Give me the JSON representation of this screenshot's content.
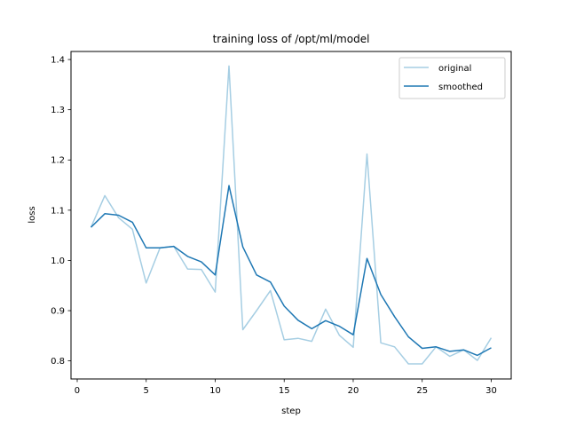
{
  "chart_data": {
    "type": "line",
    "title": "training loss of /opt/ml/model",
    "xlabel": "step",
    "ylabel": "loss",
    "xlim": [
      -0.45,
      31.45
    ],
    "ylim": [
      0.764,
      1.416
    ],
    "xticks": [
      0,
      5,
      10,
      15,
      20,
      25,
      30
    ],
    "yticks": [
      0.8,
      0.9,
      1.0,
      1.1,
      1.2,
      1.3,
      1.4
    ],
    "ytick_labels": [
      "0.8",
      "0.9",
      "1.0",
      "1.1",
      "1.2",
      "1.3",
      "1.4"
    ],
    "grid": false,
    "legend_position": "upper right",
    "x": [
      1,
      2,
      3,
      4,
      5,
      6,
      7,
      8,
      9,
      10,
      11,
      12,
      13,
      14,
      15,
      16,
      17,
      18,
      19,
      20,
      21,
      22,
      23,
      24,
      25,
      26,
      27,
      28,
      29,
      30
    ],
    "series": [
      {
        "name": "original",
        "color": "#a6cee3",
        "values": [
          1.066,
          1.129,
          1.085,
          1.062,
          0.955,
          1.025,
          1.028,
          0.983,
          0.982,
          0.937,
          1.387,
          0.862,
          0.9,
          0.94,
          0.842,
          0.845,
          0.839,
          0.903,
          0.851,
          0.827,
          1.212,
          0.836,
          0.828,
          0.794,
          0.794,
          0.828,
          0.809,
          0.822,
          0.801,
          0.846
        ]
      },
      {
        "name": "smoothed",
        "color": "#1f78b4",
        "values": [
          1.066,
          1.093,
          1.09,
          1.076,
          1.025,
          1.025,
          1.028,
          1.008,
          0.997,
          0.971,
          1.149,
          1.027,
          0.971,
          0.957,
          0.909,
          0.881,
          0.864,
          0.88,
          0.869,
          0.852,
          1.004,
          0.932,
          0.888,
          0.848,
          0.825,
          0.828,
          0.819,
          0.822,
          0.811,
          0.826
        ]
      }
    ]
  }
}
